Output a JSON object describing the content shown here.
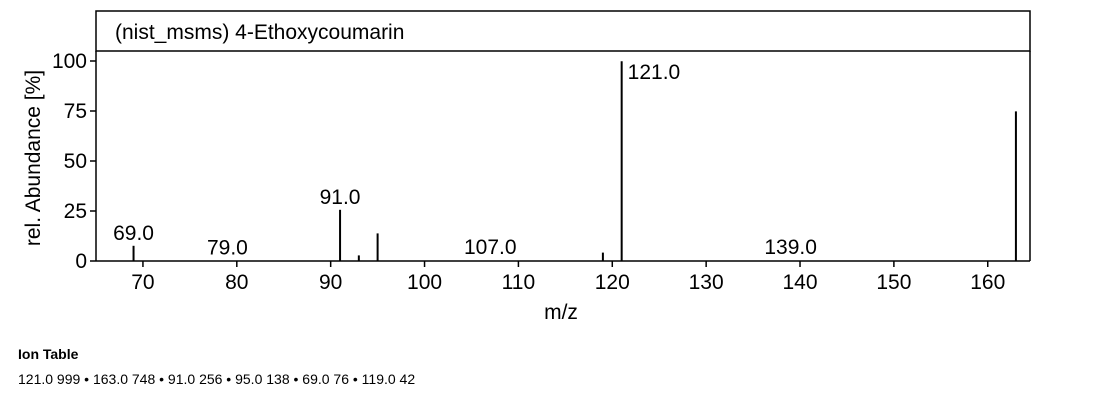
{
  "chart_data": {
    "type": "bar",
    "title": "(nist_msms) 4-Ethoxycoumarin",
    "xlabel": "m/z",
    "ylabel": "rel. Abundance [%]",
    "xlim": [
      65,
      164.5
    ],
    "ylim": [
      0,
      100
    ],
    "xticks": [
      70,
      80,
      90,
      100,
      110,
      120,
      130,
      140,
      150,
      160
    ],
    "yticks": [
      0,
      25,
      50,
      75,
      100
    ],
    "peaks": [
      {
        "mz": 69.0,
        "intensity": 7.6
      },
      {
        "mz": 91.0,
        "intensity": 25.6
      },
      {
        "mz": 93.0,
        "intensity": 2.8
      },
      {
        "mz": 95.0,
        "intensity": 13.8
      },
      {
        "mz": 119.0,
        "intensity": 4.2
      },
      {
        "mz": 121.0,
        "intensity": 99.9
      },
      {
        "mz": 163.0,
        "intensity": 74.8
      }
    ],
    "labels": [
      {
        "mz": 69.0,
        "text": "69.0",
        "intensity": 7.6
      },
      {
        "mz": 79.0,
        "text": "79.0",
        "intensity": 0.3
      },
      {
        "mz": 91.0,
        "text": "91.0",
        "intensity": 25.6
      },
      {
        "mz": 107.0,
        "text": "107.0",
        "intensity": 0.5
      },
      {
        "mz": 121.0,
        "text": "121.0",
        "intensity": 99.9,
        "side": "right"
      },
      {
        "mz": 139.0,
        "text": "139.0",
        "intensity": 0.5
      }
    ]
  },
  "ion_table": {
    "title": "Ion Table",
    "text": "121.0 999 • 163.0 748 • 91.0 256 • 95.0 138 • 69.0 76 • 119.0 42"
  }
}
